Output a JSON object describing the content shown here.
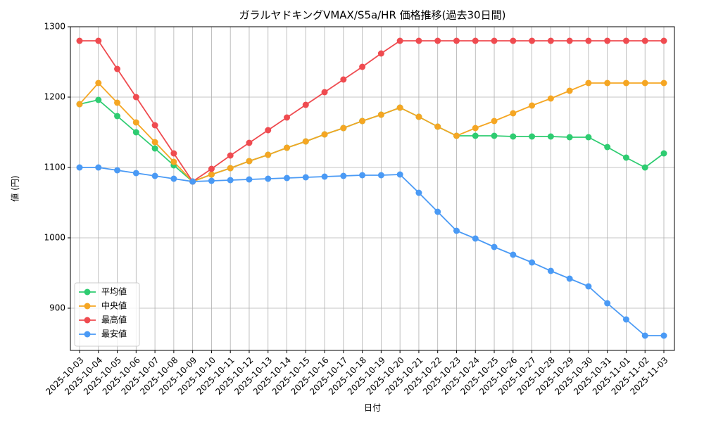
{
  "chart_data": {
    "type": "line",
    "title": "ガラルヤドキングVMAX/S5a/HR 価格推移(過去30日間)",
    "x_label": "日付",
    "y_label": "値 (円)",
    "categories": [
      "2025-10-03",
      "2025-10-04",
      "2025-10-05",
      "2025-10-06",
      "2025-10-07",
      "2025-10-08",
      "2025-10-09",
      "2025-10-10",
      "2025-10-11",
      "2025-10-12",
      "2025-10-13",
      "2025-10-14",
      "2025-10-15",
      "2025-10-16",
      "2025-10-17",
      "2025-10-18",
      "2025-10-19",
      "2025-10-20",
      "2025-10-21",
      "2025-10-22",
      "2025-10-23",
      "2025-10-24",
      "2025-10-25",
      "2025-10-26",
      "2025-10-27",
      "2025-10-28",
      "2025-10-29",
      "2025-10-30",
      "2025-10-31",
      "2025-11-01",
      "2025-11-02",
      "2025-11-03"
    ],
    "series": [
      {
        "name": "平均値",
        "color": "#2ecc71",
        "values": [
          1190,
          1196,
          1173,
          1150,
          1127,
          1103,
          1080,
          1090,
          1099,
          1109,
          1118,
          1128,
          1137,
          1147,
          1156,
          1166,
          1175,
          1185,
          1172,
          1158,
          1145,
          1145,
          1145,
          1144,
          1144,
          1144,
          1143,
          1143,
          1129,
          1114,
          1100,
          1120
        ]
      },
      {
        "name": "中央値",
        "color": "#f5a623",
        "values": [
          1190,
          1220,
          1192,
          1164,
          1136,
          1108,
          1080,
          1090,
          1099,
          1109,
          1118,
          1128,
          1137,
          1147,
          1156,
          1166,
          1175,
          1185,
          1172,
          1158,
          1145,
          1156,
          1166,
          1177,
          1188,
          1198,
          1209,
          1220,
          1220,
          1220,
          1220,
          1220
        ]
      },
      {
        "name": "最高値",
        "color": "#ef4b50",
        "values": [
          1280,
          1280,
          1240,
          1200,
          1160,
          1120,
          1080,
          1098,
          1117,
          1135,
          1153,
          1171,
          1189,
          1207,
          1225,
          1243,
          1262,
          1280,
          1280,
          1280,
          1280,
          1280,
          1280,
          1280,
          1280,
          1280,
          1280,
          1280,
          1280,
          1280,
          1280,
          1280
        ]
      },
      {
        "name": "最安値",
        "color": "#4a9af5",
        "values": [
          1100,
          1100,
          1096,
          1092,
          1088,
          1084,
          1080,
          1081,
          1082,
          1083,
          1084,
          1085,
          1086,
          1087,
          1088,
          1089,
          1089,
          1090,
          1064,
          1037,
          1010,
          999,
          987,
          976,
          965,
          953,
          942,
          931,
          907,
          884,
          861,
          861
        ]
      }
    ],
    "ylim": [
      840,
      1300
    ],
    "yticks": [
      900,
      1000,
      1100,
      1200,
      1300
    ],
    "grid": true,
    "legend": "lower left"
  }
}
